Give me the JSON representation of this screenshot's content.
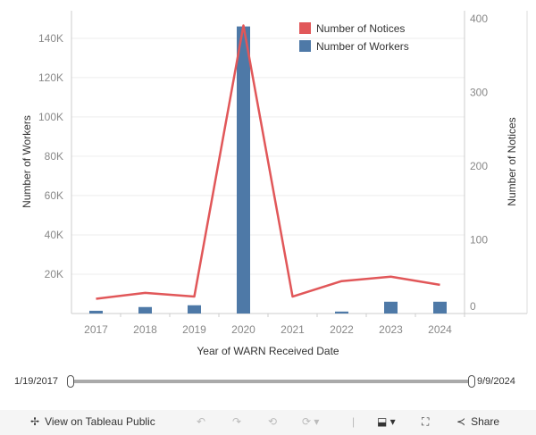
{
  "chart_data": {
    "type": "bar+line",
    "categories": [
      "2017",
      "2018",
      "2019",
      "2020",
      "2021",
      "2022",
      "2023",
      "2024"
    ],
    "xlabel": "Year of WARN Received Date",
    "ylabel_left": "Number of Workers",
    "ylabel_right": "Number of Notices",
    "left_ticks": [
      "20K",
      "40K",
      "60K",
      "80K",
      "100K",
      "120K",
      "140K"
    ],
    "left_tick_values": [
      20000,
      40000,
      60000,
      80000,
      100000,
      120000,
      140000
    ],
    "right_ticks": [
      "0",
      "100",
      "200",
      "300",
      "400"
    ],
    "right_tick_values": [
      0,
      100,
      200,
      300,
      400
    ],
    "ylim_left": [
      0,
      154000
    ],
    "ylim_right": [
      0,
      411
    ],
    "grid": true,
    "legend_position": "top-right",
    "series": [
      {
        "name": "Number of Notices",
        "type": "line",
        "axis": "right",
        "color": "#e15759",
        "values": [
          20,
          28,
          23,
          391,
          23,
          44,
          50,
          39
        ]
      },
      {
        "name": "Number of Workers",
        "type": "bar",
        "axis": "left",
        "color": "#4e79a7",
        "values": [
          1400,
          3300,
          4200,
          146000,
          0,
          1000,
          6000,
          6000
        ]
      }
    ]
  },
  "filter": {
    "start": "1/19/2017",
    "end": "9/9/2024",
    "position": [
      0,
      1
    ]
  },
  "toolbar": {
    "view": "View on Tableau Public",
    "share": "Share"
  }
}
